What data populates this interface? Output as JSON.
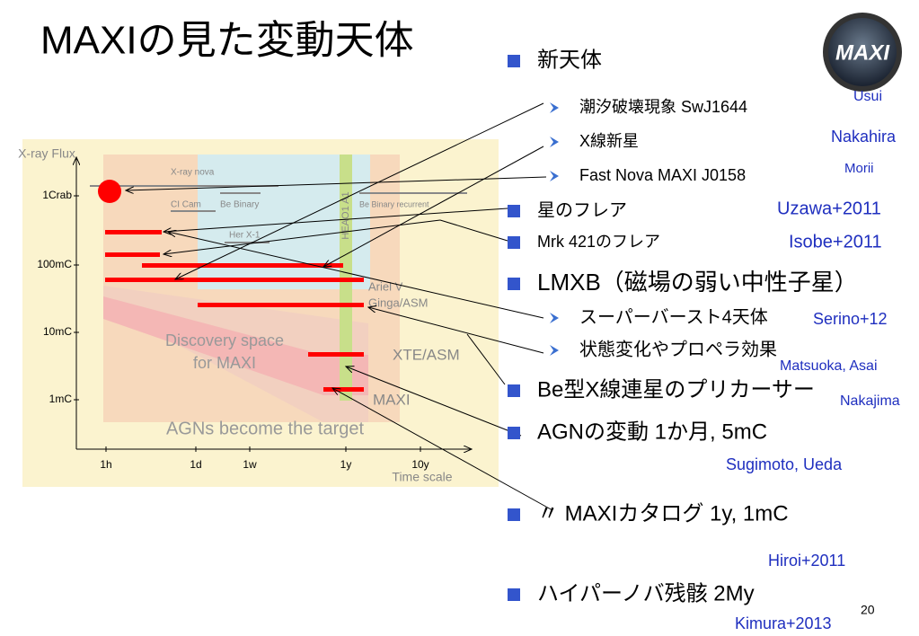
{
  "title": "MAXIの見た変動天体",
  "logo": "MAXI",
  "page_number": "20",
  "figure": {
    "y_axis_label": "X-ray Flux",
    "y_ticks": [
      "1Crab",
      "100mC",
      "10mC",
      "1mC"
    ],
    "x_ticks": [
      "1h",
      "1d",
      "1w",
      "1y",
      "10y"
    ],
    "x_axis_label": "Time scale",
    "labels": [
      "X-ray nova",
      "CI Cam",
      "Be Binary",
      "Be Binary recurrent",
      "Her X-1",
      "HEAO1 A1",
      "Ariel V",
      "Ginga/ASM",
      "XTE/ASM",
      "MAXI",
      "Discovery space",
      "for MAXI",
      "AGNs become the target"
    ]
  },
  "bullets": [
    {
      "text": "新天体"
    },
    {
      "text": "潮汐破壊現象 SwJ1644",
      "author": "Usui"
    },
    {
      "text": "X線新星",
      "author": "Nakahira"
    },
    {
      "text": "Fast Nova MAXI J0158",
      "author": "Morii"
    },
    {
      "text": "星のフレア",
      "author": "Uzawa+2011"
    },
    {
      "text": "Mrk 421のフレア",
      "author": "Isobe+2011"
    },
    {
      "text": "LMXB（磁場の弱い中性子星）"
    },
    {
      "text": "スーパーバースト4天体",
      "author": "Serino+12"
    },
    {
      "text": "状態変化やプロペラ効果",
      "author": "Matsuoka, Asai"
    },
    {
      "text": "Be型X線連星のプリカーサー",
      "author": "Nakajima"
    },
    {
      "text": "AGNの変動  1か月, 5mC",
      "author": "Sugimoto, Ueda"
    },
    {
      "text": "〃  MAXIカタログ  1y, 1mC",
      "author": "Hiroi+2011"
    },
    {
      "text": "ハイパーノバ残骸  2My",
      "author": "Kimura+2013"
    }
  ]
}
